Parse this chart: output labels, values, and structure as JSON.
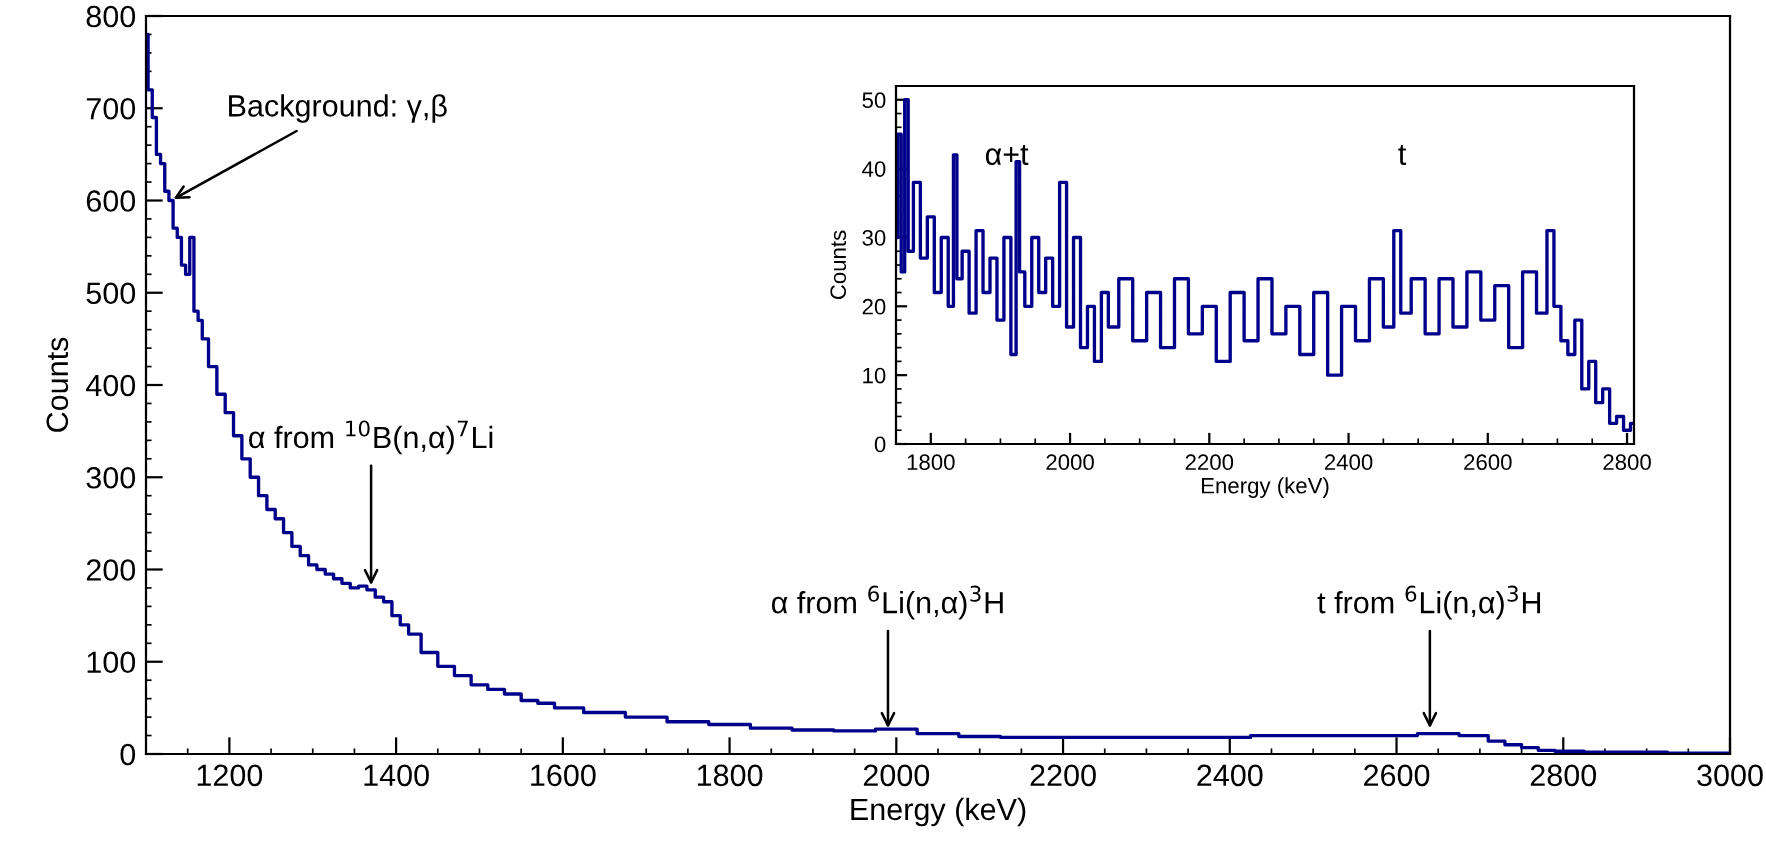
{
  "chart_data": [
    {
      "type": "step",
      "xlabel": "Energy (keV)",
      "ylabel": "Counts",
      "xlim": [
        1100,
        3000
      ],
      "ylim": [
        0,
        800
      ],
      "xticks": [
        1200,
        1400,
        1600,
        1800,
        2000,
        2200,
        2400,
        2600,
        2800,
        3000
      ],
      "yticks": [
        0,
        100,
        200,
        300,
        400,
        500,
        600,
        700,
        800
      ],
      "grid": false,
      "legend": false,
      "series": [
        {
          "color": "#00008b",
          "x": [
            1100,
            1105,
            1110,
            1115,
            1120,
            1125,
            1130,
            1135,
            1140,
            1145,
            1150,
            1155,
            1160,
            1165,
            1170,
            1180,
            1190,
            1200,
            1210,
            1220,
            1230,
            1240,
            1250,
            1260,
            1270,
            1280,
            1290,
            1300,
            1310,
            1320,
            1330,
            1340,
            1350,
            1360,
            1370,
            1380,
            1390,
            1400,
            1410,
            1420,
            1440,
            1460,
            1480,
            1500,
            1520,
            1540,
            1560,
            1580,
            1600,
            1650,
            1700,
            1750,
            1800,
            1850,
            1900,
            1950,
            2000,
            2050,
            2100,
            2150,
            2200,
            2300,
            2400,
            2450,
            2500,
            2600,
            2650,
            2700,
            2720,
            2740,
            2760,
            2780,
            2800,
            2850,
            2900,
            2950,
            3000
          ],
          "values": [
            780,
            720,
            690,
            650,
            640,
            610,
            600,
            570,
            560,
            530,
            520,
            560,
            480,
            470,
            450,
            420,
            390,
            370,
            345,
            320,
            300,
            280,
            265,
            255,
            240,
            225,
            215,
            205,
            200,
            195,
            190,
            185,
            180,
            182,
            178,
            170,
            165,
            150,
            140,
            130,
            110,
            95,
            85,
            75,
            70,
            65,
            58,
            55,
            50,
            45,
            40,
            35,
            32,
            28,
            26,
            25,
            27,
            22,
            19,
            18,
            18,
            18,
            18,
            20,
            20,
            20,
            22,
            20,
            14,
            10,
            7,
            4,
            3,
            2,
            2,
            1,
            1
          ]
        }
      ],
      "annotations": [
        {
          "text": "Background: γ,β",
          "x": 1130,
          "y": 600
        },
        {
          "text": "α from $^{10}$B(n,α)$^{7}$Li",
          "x": 1370,
          "y": 180
        },
        {
          "text": "α from $^{6}$Li(n,α)$^{3}$H",
          "x": 1990,
          "y": 25
        },
        {
          "text": "t from $^{6}$Li(n,α)$^{3}$H",
          "x": 2640,
          "y": 25
        }
      ]
    },
    {
      "type": "step",
      "xlabel": "Energy (keV)",
      "ylabel": "Counts",
      "xlim": [
        1750,
        2810
      ],
      "ylim": [
        0,
        52
      ],
      "xticks": [
        1800,
        2000,
        2200,
        2400,
        2600,
        2800
      ],
      "yticks": [
        0,
        10,
        20,
        30,
        40,
        50
      ],
      "grid": false,
      "legend": false,
      "series": [
        {
          "color": "#00008b",
          "x": [
            1750,
            1755,
            1760,
            1765,
            1770,
            1780,
            1790,
            1800,
            1810,
            1820,
            1830,
            1835,
            1840,
            1850,
            1860,
            1870,
            1880,
            1890,
            1900,
            1910,
            1920,
            1925,
            1930,
            1940,
            1950,
            1960,
            1970,
            1980,
            1990,
            2000,
            2010,
            2020,
            2030,
            2040,
            2050,
            2060,
            2080,
            2100,
            2120,
            2140,
            2160,
            2180,
            2200,
            2220,
            2240,
            2260,
            2280,
            2300,
            2320,
            2340,
            2360,
            2380,
            2400,
            2420,
            2440,
            2460,
            2470,
            2480,
            2500,
            2520,
            2540,
            2560,
            2580,
            2600,
            2620,
            2640,
            2660,
            2680,
            2690,
            2700,
            2710,
            2720,
            2730,
            2740,
            2750,
            2760,
            2770,
            2780,
            2790,
            2800,
            2810
          ],
          "values": [
            30,
            45,
            25,
            50,
            28,
            38,
            27,
            33,
            22,
            30,
            20,
            42,
            24,
            28,
            19,
            31,
            22,
            27,
            18,
            30,
            13,
            41,
            25,
            20,
            30,
            22,
            27,
            20,
            38,
            17,
            30,
            14,
            20,
            12,
            22,
            17,
            24,
            15,
            22,
            14,
            24,
            16,
            20,
            12,
            22,
            15,
            24,
            16,
            20,
            13,
            22,
            10,
            20,
            15,
            24,
            17,
            31,
            19,
            24,
            16,
            24,
            17,
            25,
            18,
            23,
            14,
            25,
            19,
            31,
            20,
            15,
            13,
            18,
            8,
            12,
            6,
            8,
            3,
            4,
            2,
            3
          ]
        }
      ],
      "annotations": [
        "α+t",
        "t"
      ]
    }
  ]
}
